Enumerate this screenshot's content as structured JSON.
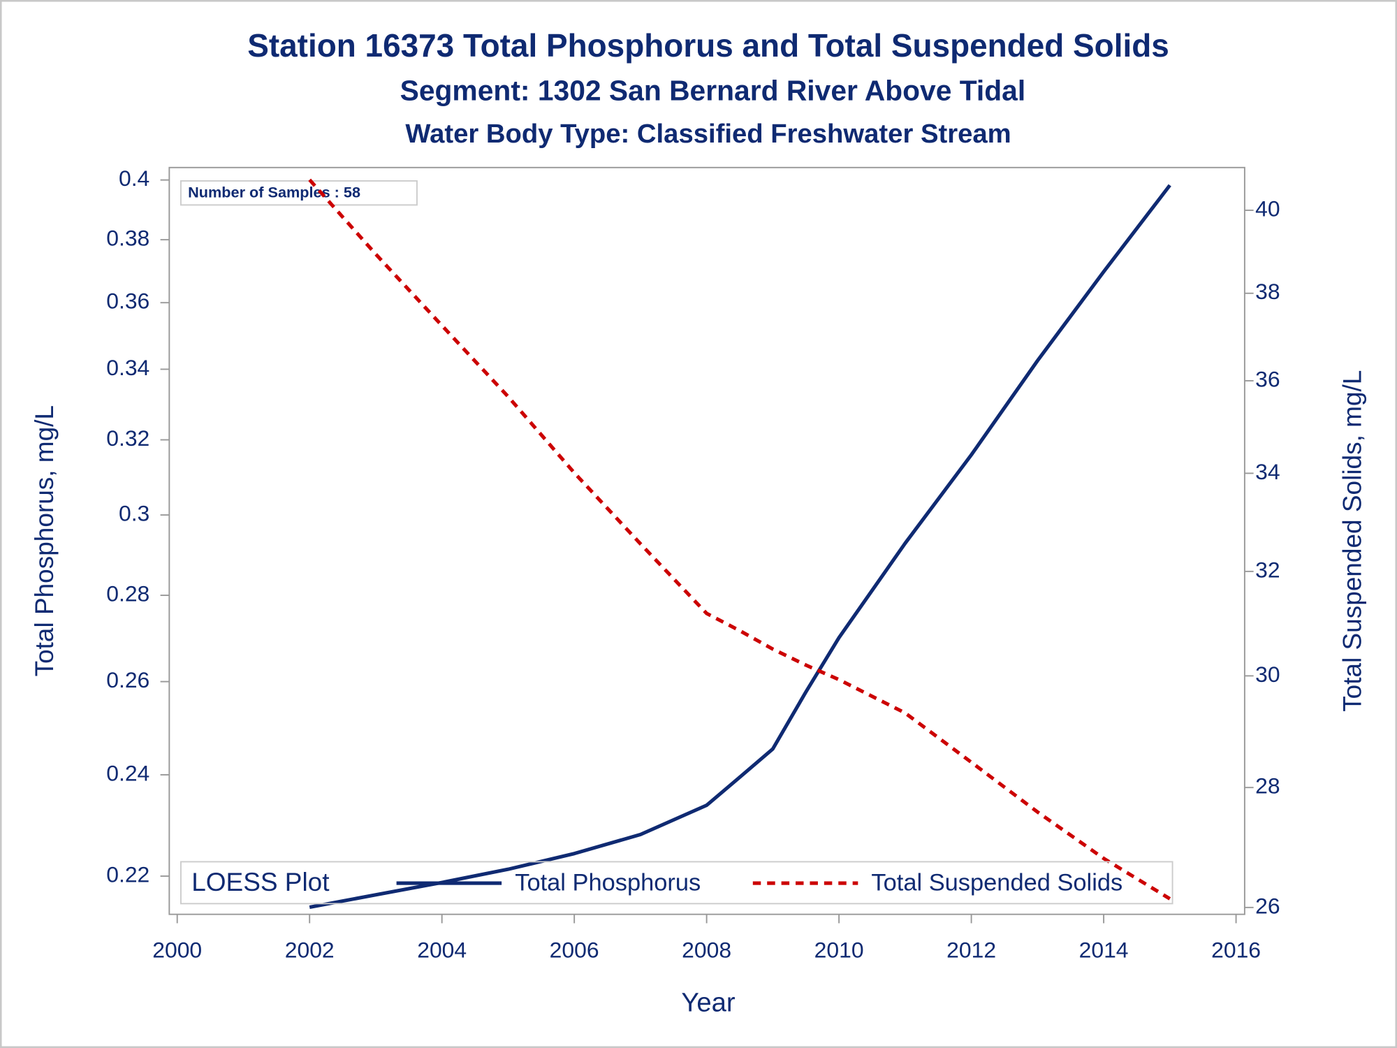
{
  "chart_data": {
    "type": "line",
    "title": "Station 16373  Total Phosphorus and Total Suspended Solids",
    "subtitle": "Segment: 1302  San Bernard River Above Tidal",
    "subtitle2": "Water Body Type: Classified Freshwater Stream",
    "annotation": "Number of Samples : 58",
    "xlabel": "Year",
    "ylabel": "Total Phosphorus, mg/L",
    "y2label": "Total Suspended Solids, mg/L",
    "legend_title": "LOESS Plot",
    "legend": "bottom",
    "x": [
      2002,
      2003,
      2004,
      2005,
      2006,
      2007,
      2008,
      2008.5,
      2009,
      2009.5,
      2010,
      2011,
      2012,
      2013,
      2014,
      2015
    ],
    "series": [
      {
        "name": "Total Phosphorus",
        "color": "#0f2a72",
        "dash": "solid",
        "axis": "y",
        "values": [
          0.2142,
          0.2165,
          0.2188,
          0.2213,
          0.2243,
          0.228,
          0.2338,
          0.2395,
          0.2454,
          0.2577,
          0.27,
          0.2928,
          0.3159,
          0.3425,
          0.3697,
          0.3982
        ]
      },
      {
        "name": "Total Suspended Solids",
        "color": "#cc0000",
        "dash": "dashed",
        "axis": "y2",
        "values": [
          40.76,
          38.93,
          37.25,
          35.65,
          34.01,
          32.55,
          31.18,
          30.85,
          30.5,
          30.2,
          29.93,
          29.32,
          28.44,
          27.58,
          26.8,
          26.14
        ]
      }
    ],
    "xlim": [
      1999.88,
      2016.13
    ],
    "xticks": [
      2000,
      2002,
      2004,
      2006,
      2008,
      2010,
      2012,
      2014,
      2016
    ],
    "ylim": [
      0.2129,
      0.4043
    ],
    "ylog": true,
    "yticks": [
      0.22,
      0.24,
      0.26,
      0.28,
      0.3,
      0.32,
      0.34,
      0.36,
      0.38,
      0.4
    ],
    "y2lim": [
      25.89,
      41.07
    ],
    "y2log": true,
    "y2ticks": [
      26,
      28,
      30,
      32,
      34,
      36,
      38,
      40
    ]
  }
}
